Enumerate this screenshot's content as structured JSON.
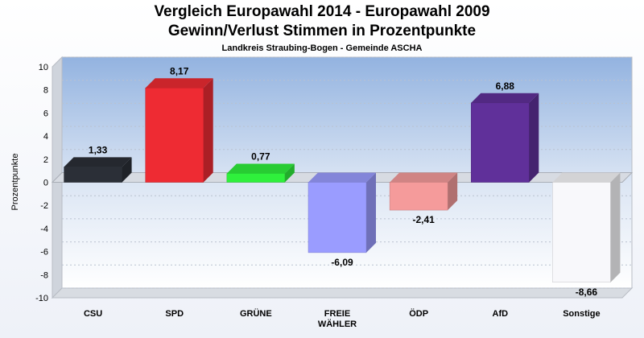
{
  "chart_data": {
    "type": "bar",
    "title": "Vergleich Europawahl 2014 - Europawahl 2009",
    "subtitle": "Gewinn/Verlust Stimmen in Prozentpunkte",
    "caption": "Landkreis Straubing-Bogen - Gemeinde ASCHA",
    "ylabel": "Prozentpunkte",
    "xlabel": "",
    "ylim": [
      -10,
      10
    ],
    "yticks": [
      10,
      8,
      6,
      4,
      2,
      0,
      -2,
      -4,
      -6,
      -8,
      -10
    ],
    "grid": true,
    "categories": [
      "CSU",
      "SPD",
      "GRÜNE",
      "FREIE WÄHLER",
      "ÖDP",
      "AfD",
      "Sonstige"
    ],
    "category_lines": [
      [
        "CSU"
      ],
      [
        "SPD"
      ],
      [
        "GRÜNE"
      ],
      [
        "FREIE",
        "WÄHLER"
      ],
      [
        "ÖDP"
      ],
      [
        "AfD"
      ],
      [
        "Sonstige"
      ]
    ],
    "values": [
      1.33,
      8.17,
      0.77,
      -6.09,
      -2.41,
      6.88,
      -8.66
    ],
    "value_labels": [
      "1,33",
      "8,17",
      "0,77",
      "-6,09",
      "-2,41",
      "6,88",
      "-8,66"
    ],
    "colors": [
      "#2b2f37",
      "#ee2b33",
      "#2ff03c",
      "#9a9cff",
      "#f59b9b",
      "#60309a",
      "#f8f8fb"
    ]
  }
}
